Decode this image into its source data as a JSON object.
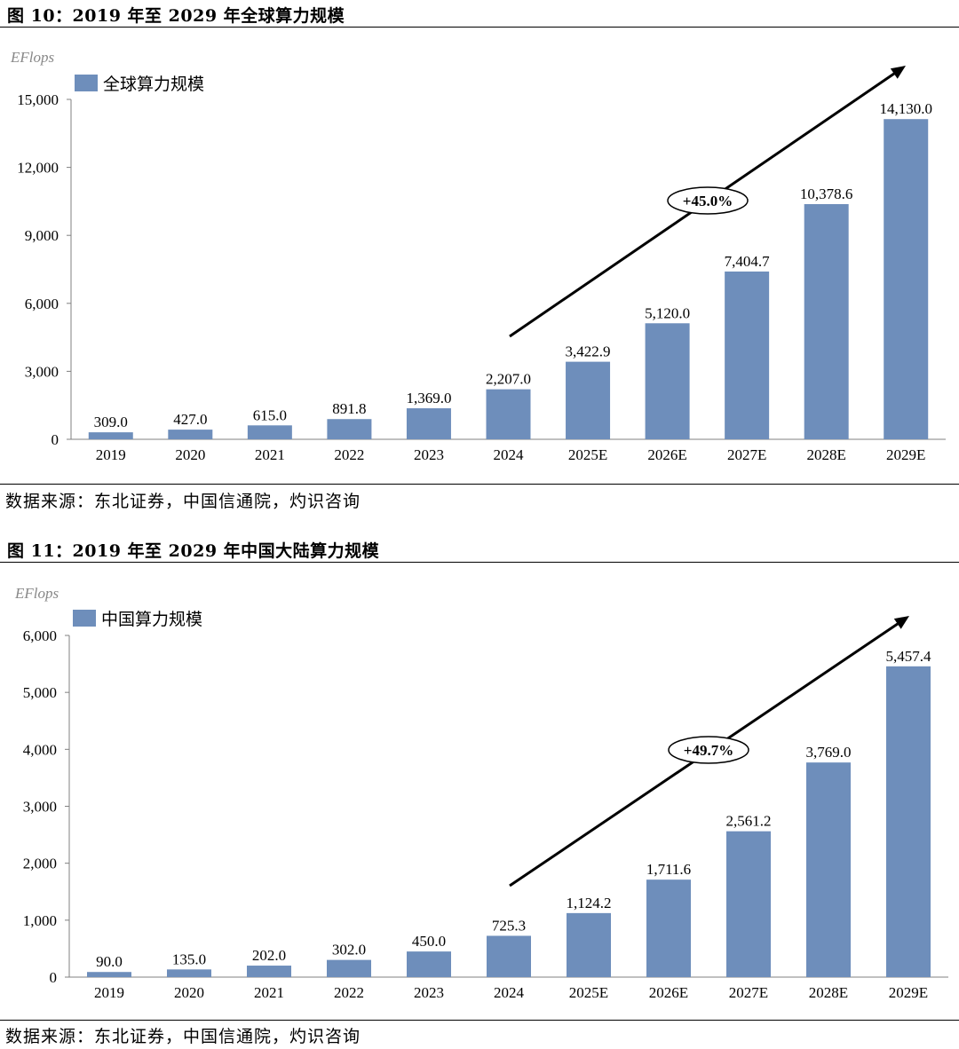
{
  "figures": [
    {
      "title": "图 10：2019 年至 2029 年全球算力规模",
      "source": "数据来源：东北证券，中国信通院，灼识咨询"
    },
    {
      "title": "图 11：2019 年至 2029 年中国大陆算力规模",
      "source": "数据来源：东北证券，中国信通院，灼识咨询"
    }
  ],
  "chart_data": [
    {
      "type": "bar",
      "title": "",
      "ylabel": "EFlops",
      "xlabel": "",
      "ylim": [
        0,
        15000
      ],
      "yticks": [
        0,
        3000,
        6000,
        9000,
        12000,
        15000
      ],
      "ytick_labels": [
        "0",
        "3,000",
        "6,000",
        "9,000",
        "12,000",
        "15,000"
      ],
      "categories": [
        "2019",
        "2020",
        "2021",
        "2022",
        "2023",
        "2024",
        "2025E",
        "2026E",
        "2027E",
        "2028E",
        "2029E"
      ],
      "series": [
        {
          "name": "全球算力规模",
          "values": [
            309.0,
            427.0,
            615.0,
            891.8,
            1369.0,
            2207.0,
            3422.9,
            5120.0,
            7404.7,
            10378.6,
            14130.0
          ],
          "labels": [
            "309.0",
            "427.0",
            "615.0",
            "891.8",
            "1,369.0",
            "2,207.0",
            "3,422.9",
            "5,120.0",
            "7,404.7",
            "10,378.6",
            "14,130.0"
          ]
        }
      ],
      "legend": "top-left",
      "grid": false,
      "bar_color": "#6E8EBB",
      "annotation": {
        "text": "+45.0%",
        "type": "growth-arrow",
        "from": "2024",
        "to": "2029E"
      }
    },
    {
      "type": "bar",
      "title": "",
      "ylabel": "EFlops",
      "xlabel": "",
      "ylim": [
        0,
        6000
      ],
      "yticks": [
        0,
        1000,
        2000,
        3000,
        4000,
        5000,
        6000
      ],
      "ytick_labels": [
        "0",
        "1,000",
        "2,000",
        "3,000",
        "4,000",
        "5,000",
        "6,000"
      ],
      "categories": [
        "2019",
        "2020",
        "2021",
        "2022",
        "2023",
        "2024",
        "2025E",
        "2026E",
        "2027E",
        "2028E",
        "2029E"
      ],
      "series": [
        {
          "name": "中国算力规模",
          "values": [
            90.0,
            135.0,
            202.0,
            302.0,
            450.0,
            725.3,
            1124.2,
            1711.6,
            2561.2,
            3769.0,
            5457.4
          ],
          "labels": [
            "90.0",
            "135.0",
            "202.0",
            "302.0",
            "450.0",
            "725.3",
            "1,124.2",
            "1,711.6",
            "2,561.2",
            "3,769.0",
            "5,457.4"
          ]
        }
      ],
      "legend": "top-left",
      "grid": false,
      "bar_color": "#6E8EBB",
      "annotation": {
        "text": "+49.7%",
        "type": "growth-arrow",
        "from": "2024",
        "to": "2029E"
      }
    }
  ]
}
